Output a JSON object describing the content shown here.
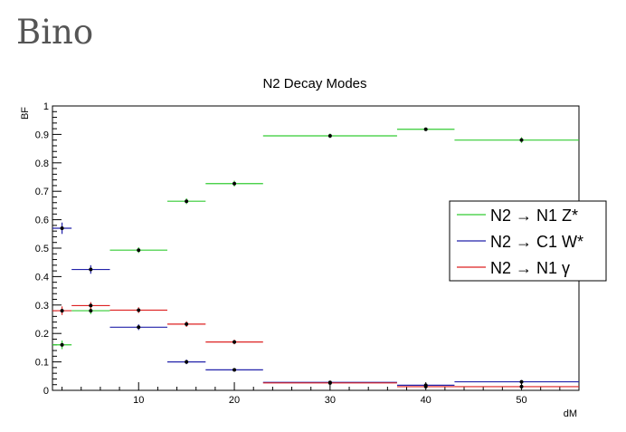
{
  "page": {
    "heading": "Bino"
  },
  "chart_data": {
    "type": "scatter",
    "title": "N2 Decay Modes",
    "xlabel": "dM",
    "ylabel": "BF",
    "xlim": [
      1,
      56
    ],
    "ylim": [
      0,
      1
    ],
    "x_ticks": [
      10,
      20,
      30,
      40,
      50
    ],
    "y_ticks": [
      0,
      0.1,
      0.2,
      0.3,
      0.4,
      0.5,
      0.6,
      0.7,
      0.8,
      0.9,
      1
    ],
    "x_tick_labels": [
      "10",
      "20",
      "30",
      "40",
      "50"
    ],
    "y_tick_labels": [
      "0",
      "0.1",
      "0.2",
      "0.3",
      "0.4",
      "0.5",
      "0.6",
      "0.7",
      "0.8",
      "0.9",
      "1"
    ],
    "legend_position": "right",
    "series": [
      {
        "name": "N2 → N1 Z*",
        "color": "#33cc33",
        "points": [
          {
            "x": 2,
            "xlo": 1,
            "xhi": 3,
            "y": 0.16,
            "err": 0.015
          },
          {
            "x": 5,
            "xlo": 3,
            "xhi": 7,
            "y": 0.28,
            "err": 0.012
          },
          {
            "x": 10,
            "xlo": 7,
            "xhi": 13,
            "y": 0.493,
            "err": 0.01
          },
          {
            "x": 15,
            "xlo": 13,
            "xhi": 17,
            "y": 0.665,
            "err": 0.01
          },
          {
            "x": 20,
            "xlo": 17,
            "xhi": 23,
            "y": 0.727,
            "err": 0.01
          },
          {
            "x": 30,
            "xlo": 23,
            "xhi": 37,
            "y": 0.895,
            "err": 0.008
          },
          {
            "x": 40,
            "xlo": 37,
            "xhi": 43,
            "y": 0.918,
            "err": 0.006
          },
          {
            "x": 50,
            "xlo": 43,
            "xhi": 56,
            "y": 0.88,
            "err": 0.01
          }
        ]
      },
      {
        "name": "N2 → C1 W*",
        "color": "#2222aa",
        "points": [
          {
            "x": 2,
            "xlo": 1,
            "xhi": 3,
            "y": 0.57,
            "err": 0.02
          },
          {
            "x": 5,
            "xlo": 3,
            "xhi": 7,
            "y": 0.425,
            "err": 0.015
          },
          {
            "x": 10,
            "xlo": 7,
            "xhi": 13,
            "y": 0.222,
            "err": 0.01
          },
          {
            "x": 15,
            "xlo": 13,
            "xhi": 17,
            "y": 0.1,
            "err": 0.008
          },
          {
            "x": 20,
            "xlo": 17,
            "xhi": 23,
            "y": 0.072,
            "err": 0.006
          },
          {
            "x": 30,
            "xlo": 23,
            "xhi": 37,
            "y": 0.028,
            "err": 0.005
          },
          {
            "x": 40,
            "xlo": 37,
            "xhi": 43,
            "y": 0.018,
            "err": 0.004
          },
          {
            "x": 50,
            "xlo": 43,
            "xhi": 56,
            "y": 0.03,
            "err": 0.006
          }
        ]
      },
      {
        "name": "N2 → N1 γ",
        "color": "#dd2222",
        "points": [
          {
            "x": 2,
            "xlo": 1,
            "xhi": 3,
            "y": 0.28,
            "err": 0.015
          },
          {
            "x": 5,
            "xlo": 3,
            "xhi": 7,
            "y": 0.298,
            "err": 0.012
          },
          {
            "x": 10,
            "xlo": 7,
            "xhi": 13,
            "y": 0.282,
            "err": 0.01
          },
          {
            "x": 15,
            "xlo": 13,
            "xhi": 17,
            "y": 0.233,
            "err": 0.01
          },
          {
            "x": 20,
            "xlo": 17,
            "xhi": 23,
            "y": 0.17,
            "err": 0.008
          },
          {
            "x": 30,
            "xlo": 23,
            "xhi": 37,
            "y": 0.026,
            "err": 0.004
          },
          {
            "x": 40,
            "xlo": 37,
            "xhi": 43,
            "y": 0.013,
            "err": 0.003
          },
          {
            "x": 50,
            "xlo": 43,
            "xhi": 56,
            "y": 0.013,
            "err": 0.003
          }
        ]
      }
    ]
  }
}
